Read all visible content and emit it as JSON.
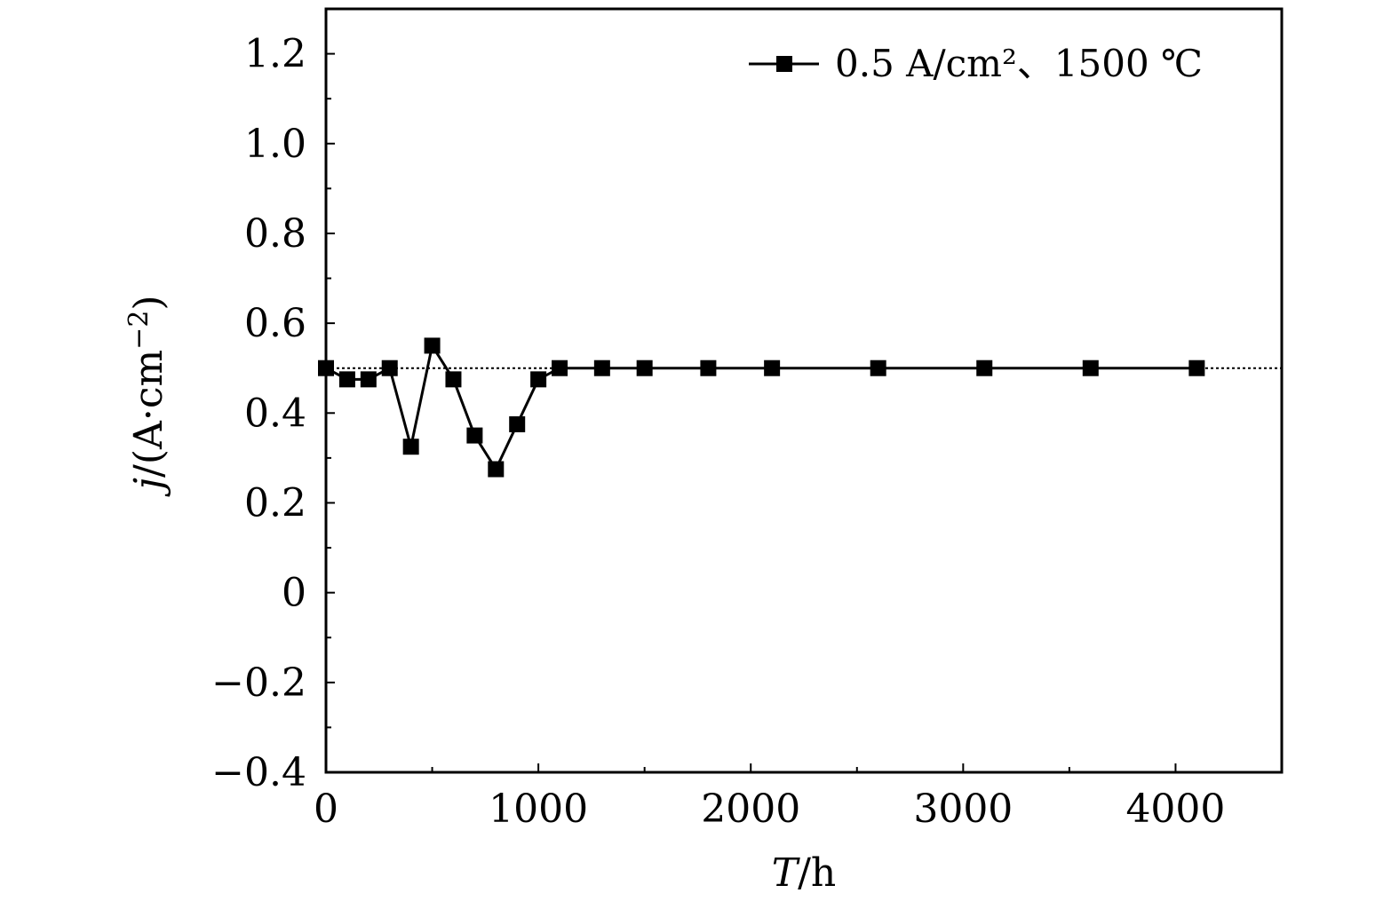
{
  "chart_data": {
    "type": "line",
    "title": "",
    "xlabel": {
      "var": "T",
      "unit": "/h"
    },
    "ylabel": {
      "var": "j",
      "unit": "/(A·cm",
      "exp": "−2",
      "close": ")"
    },
    "xlim": [
      0,
      4500
    ],
    "ylim": [
      -0.4,
      1.3
    ],
    "xticks": [
      {
        "value": 0,
        "label": "0"
      },
      {
        "value": 1000,
        "label": "1000"
      },
      {
        "value": 2000,
        "label": "2000"
      },
      {
        "value": 3000,
        "label": "3000"
      },
      {
        "value": 4000,
        "label": "4000"
      }
    ],
    "yticks": [
      {
        "value": -0.4,
        "label": "−0.4"
      },
      {
        "value": -0.2,
        "label": "−0.2"
      },
      {
        "value": 0,
        "label": "0"
      },
      {
        "value": 0.2,
        "label": "0.2"
      },
      {
        "value": 0.4,
        "label": "0.4"
      },
      {
        "value": 0.6,
        "label": "0.6"
      },
      {
        "value": 0.8,
        "label": "0.8"
      },
      {
        "value": 1.0,
        "label": "1.0"
      },
      {
        "value": 1.2,
        "label": "1.2"
      }
    ],
    "reference_line": {
      "y": 0.5,
      "style": "dotted"
    },
    "legend": {
      "position": "top-right"
    },
    "series": [
      {
        "name": "0.5 A/cm²、1500 ℃",
        "marker": "square",
        "color": "#000000",
        "x": [
          0,
          100,
          200,
          300,
          400,
          500,
          600,
          700,
          800,
          900,
          1000,
          1100,
          1300,
          1500,
          1800,
          2100,
          2600,
          3100,
          3600,
          4100
        ],
        "y": [
          0.5,
          0.475,
          0.475,
          0.5,
          0.325,
          0.55,
          0.475,
          0.35,
          0.275,
          0.375,
          0.475,
          0.5,
          0.5,
          0.5,
          0.5,
          0.5,
          0.5,
          0.5,
          0.5,
          0.5
        ]
      }
    ]
  }
}
